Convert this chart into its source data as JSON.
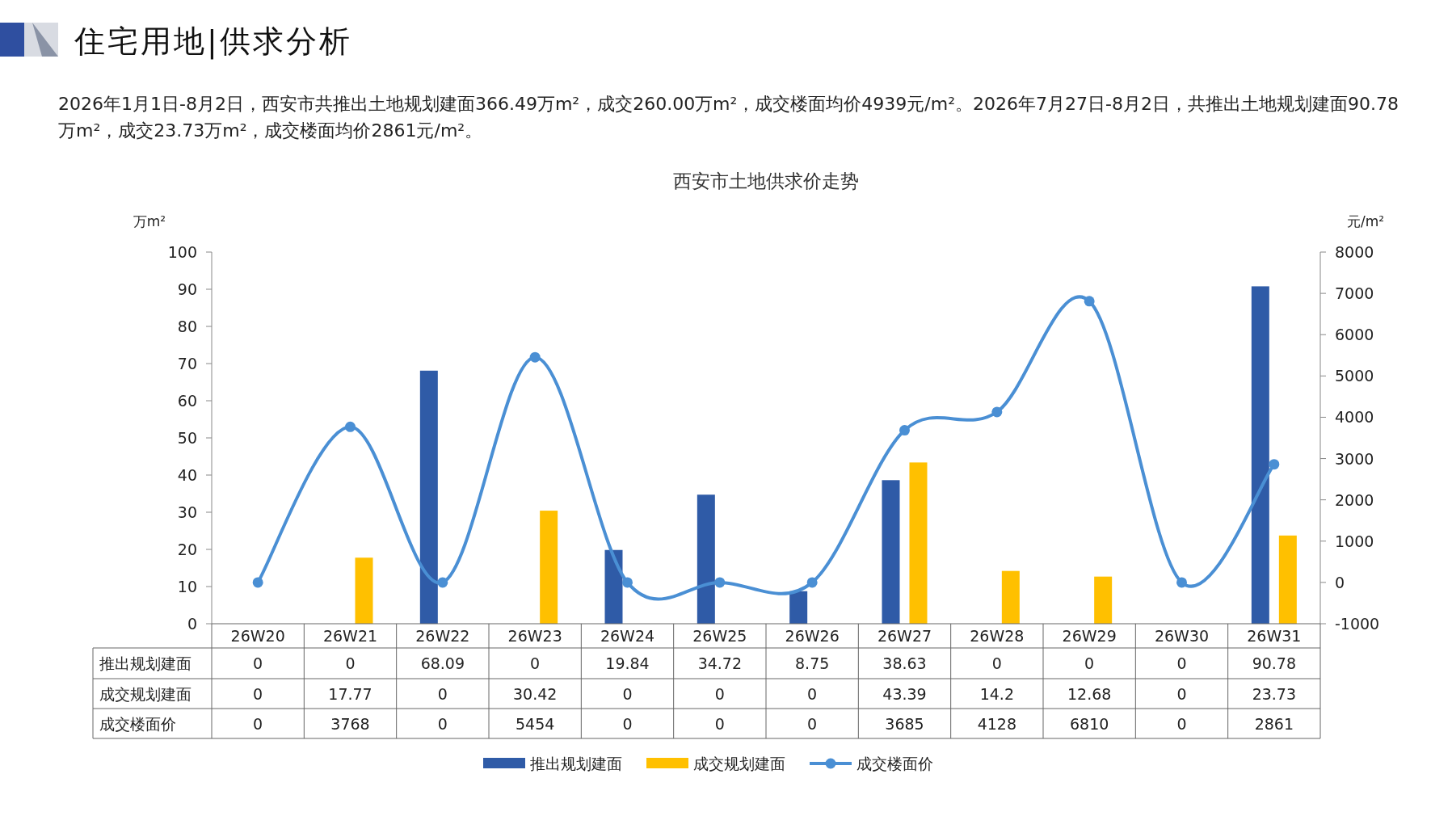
{
  "chart_data": {
    "type": "bar",
    "title": "西安市土地供求价走势",
    "ylabel": "万m²",
    "y2label": "元/m²",
    "annotations": [
      "住宅用地|供求分析",
      "2026年1月1日-8月2日，西安市共推出土地规划建面366.49万m²，成交260.00万m²，成交楼面均价4939元/m²。2026年7月27日-8月2日，共推出土地规划建面90.78万m²，成交23.73万m²，成交楼面均价2861元/m²。"
    ],
    "categories": [
      "26W20",
      "26W21",
      "26W22",
      "26W23",
      "26W24",
      "26W25",
      "26W26",
      "26W27",
      "26W28",
      "26W29",
      "26W30",
      "26W31"
    ],
    "series": [
      {
        "name": "推出规划建面",
        "color": "#2f5ba7",
        "values": [
          0,
          0,
          68.09,
          0,
          19.84,
          34.72,
          8.75,
          38.63,
          0,
          0,
          0,
          90.78
        ]
      },
      {
        "name": "成交规划建面",
        "color": "#ffc000",
        "values": [
          0,
          17.77,
          0,
          30.42,
          0,
          0,
          0,
          43.39,
          14.2,
          12.68,
          0,
          23.73
        ]
      },
      {
        "name": "成交楼面价",
        "type": "line",
        "axis": "y2",
        "color": "#4a8fd4",
        "marker": "circle",
        "values": [
          0,
          3768,
          0,
          5454,
          0,
          0,
          0,
          3685,
          4128,
          6810,
          0,
          2861
        ]
      }
    ],
    "ylim": [
      0,
      100
    ],
    "yticks": [
      0,
      10,
      20,
      30,
      40,
      50,
      60,
      70,
      80,
      90,
      100
    ],
    "y2lim": [
      -1000,
      8000
    ],
    "y2ticks": [
      -1000,
      0,
      1000,
      2000,
      3000,
      4000,
      5000,
      6000,
      7000,
      8000
    ],
    "data_labels": true,
    "grid": false,
    "legend": "bottom"
  }
}
